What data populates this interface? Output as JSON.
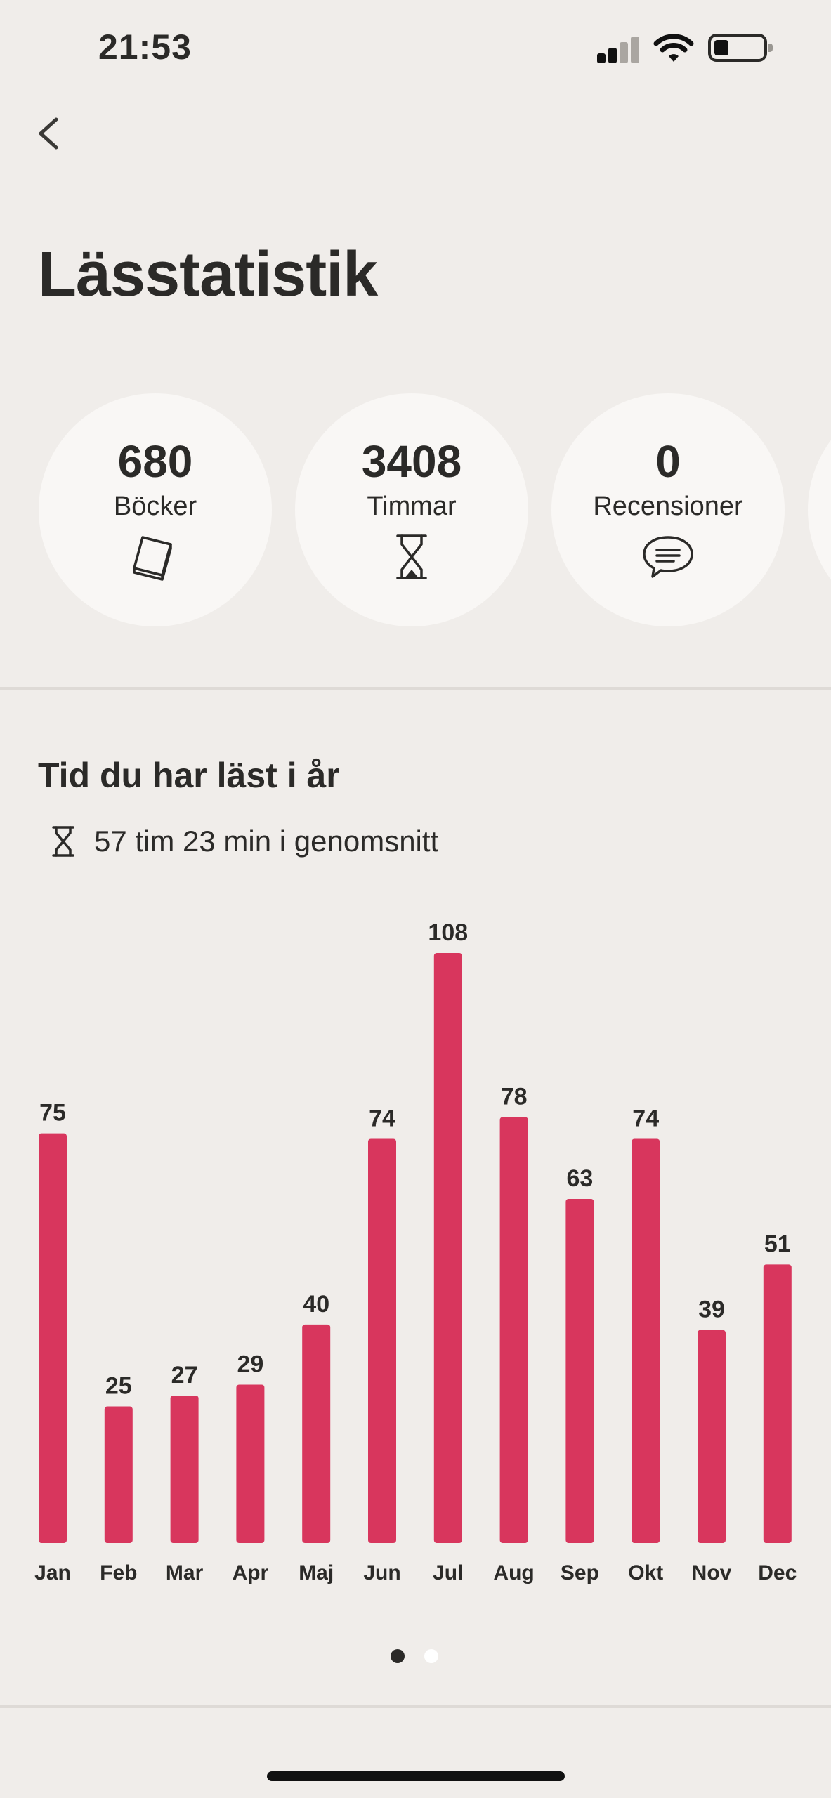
{
  "status_bar": {
    "time": "21:53"
  },
  "page": {
    "title": "Lässtatistik"
  },
  "stats": [
    {
      "value": "680",
      "label": "Böcker",
      "icon": "book-icon"
    },
    {
      "value": "3408",
      "label": "Timmar",
      "icon": "hourglass-icon"
    },
    {
      "value": "0",
      "label": "Recensioner",
      "icon": "speech-bubble-icon"
    }
  ],
  "section": {
    "title": "Tid du har läst i år",
    "average": "57 tim 23 min i genomsnitt"
  },
  "colors": {
    "bar": "#D8365D",
    "background": "#F0EDEA",
    "circle": "#F9F7F5",
    "text": "#2B2A28"
  },
  "chart_data": {
    "type": "bar",
    "categories": [
      "Jan",
      "Feb",
      "Mar",
      "Apr",
      "Maj",
      "Jun",
      "Jul",
      "Aug",
      "Sep",
      "Okt",
      "Nov",
      "Dec"
    ],
    "values": [
      75,
      25,
      27,
      29,
      40,
      74,
      108,
      78,
      63,
      74,
      39,
      51
    ],
    "data_labels": true,
    "grid": false,
    "ylim": [
      0,
      108
    ]
  },
  "pager": {
    "pages": 2,
    "active": 0
  }
}
